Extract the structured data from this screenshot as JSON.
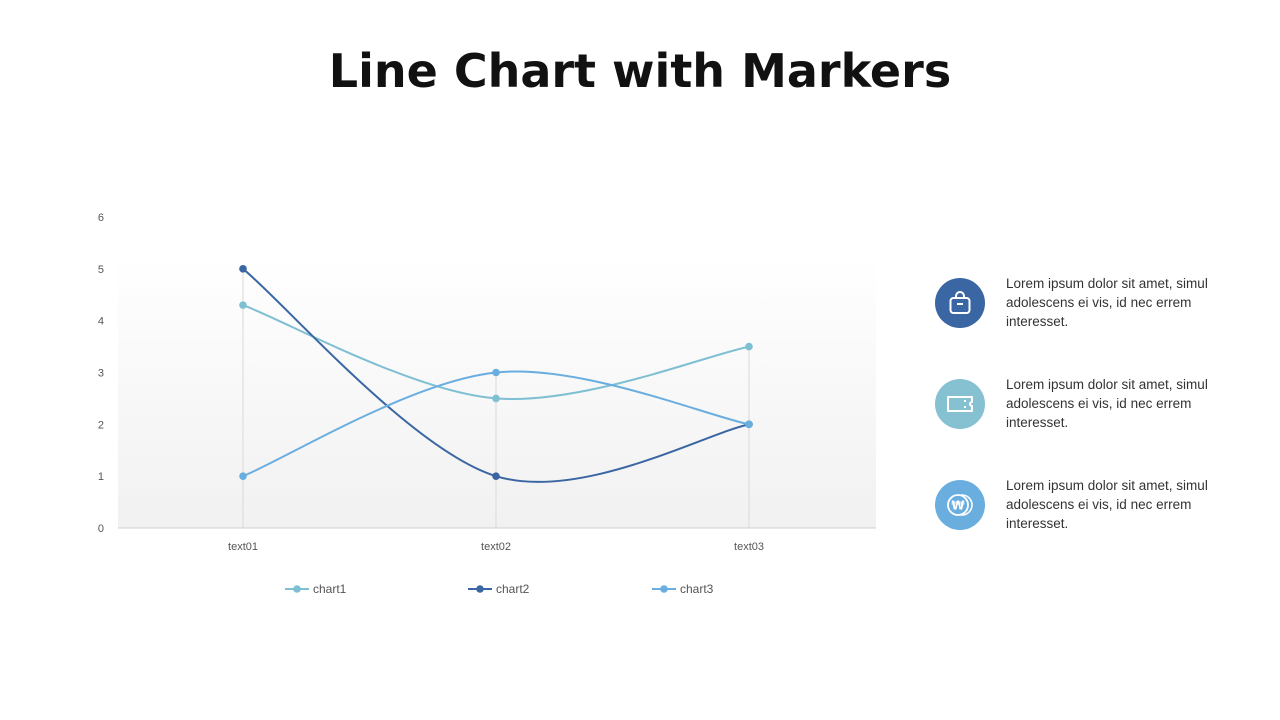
{
  "page": {
    "title": "Line Chart with Markers"
  },
  "chart_data": {
    "type": "line",
    "title": "",
    "categories": [
      "text01",
      "text02",
      "text03"
    ],
    "series": [
      {
        "name": "chart1",
        "values": [
          4.3,
          2.5,
          3.5
        ],
        "color": "#7fbfd3"
      },
      {
        "name": "chart2",
        "values": [
          5,
          1,
          2
        ],
        "color": "#3a67a3"
      },
      {
        "name": "chart3",
        "values": [
          1,
          3,
          2
        ],
        "color": "#6aaee0"
      }
    ],
    "ylim": [
      0,
      6
    ],
    "yticks": [
      "0",
      "1",
      "2",
      "3",
      "4",
      "5",
      "6"
    ],
    "smooth": true,
    "markers": true,
    "legend": "bottom",
    "xlabel": "",
    "ylabel": ""
  },
  "side_items": [
    {
      "icon": "shopping-bag-icon",
      "color": "#3a67a3",
      "text": "Lorem  ipsum dolor sit amet, simul adolescens ei vis, id nec errem  interesset."
    },
    {
      "icon": "ticket-icon",
      "color": "#86c1d2",
      "text": "Lorem  ipsum dolor sit amet, simul adolescens ei vis, id nec errem  interesset."
    },
    {
      "icon": "won-coin-icon",
      "color": "#6aaee0",
      "text": "Lorem  ipsum dolor sit amet, simul adolescens ei vis, id nec errem  interesset."
    }
  ]
}
